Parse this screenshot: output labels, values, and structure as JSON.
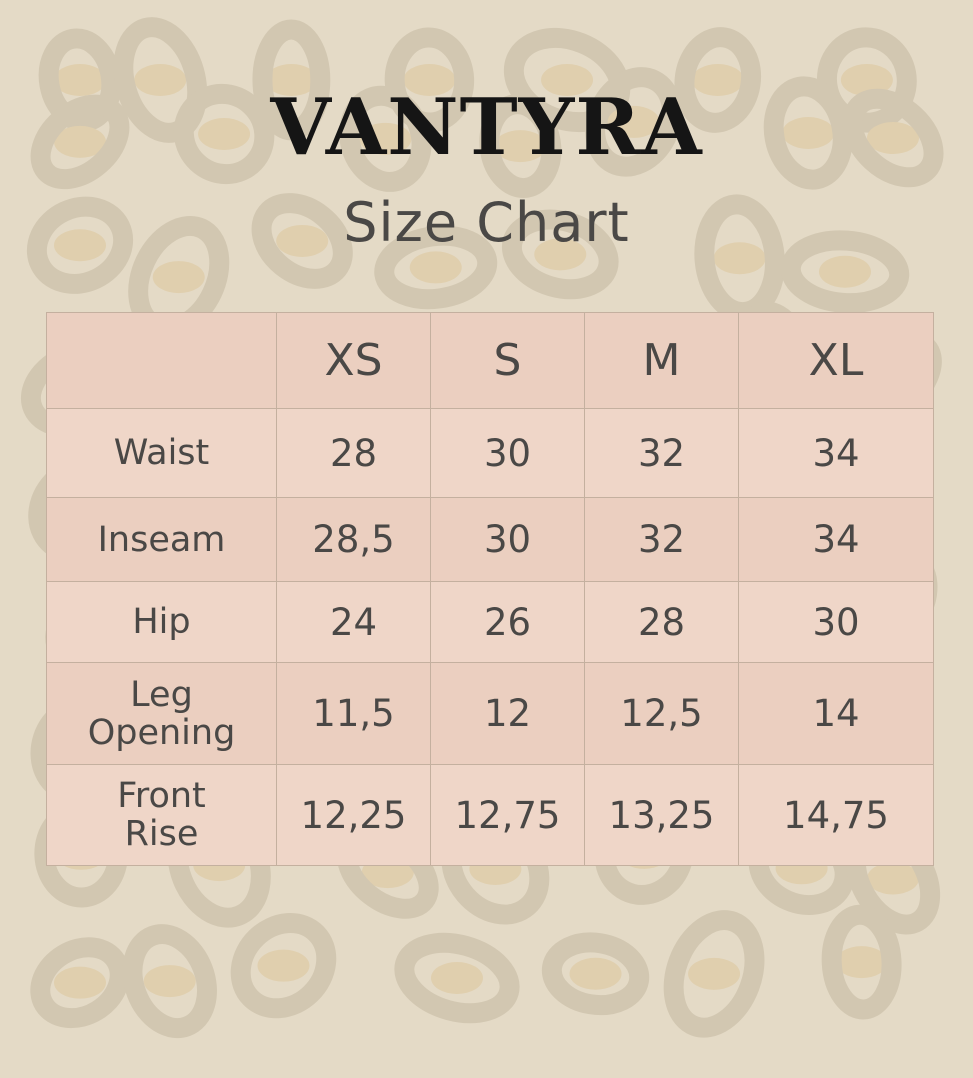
{
  "brand": "VANTYRA",
  "subtitle": "Size Chart",
  "colors": {
    "background": "#e4dac6",
    "leopard_spots": "#d2c7b1",
    "table_fill": "#ebcfc0",
    "text": "#4a4846",
    "title": "#151515"
  },
  "chart_data": {
    "type": "table",
    "columns": [
      "",
      "XS",
      "S",
      "M",
      "XL"
    ],
    "rows": [
      {
        "label": "Waist",
        "values": [
          "28",
          "30",
          "32",
          "34"
        ]
      },
      {
        "label": "Inseam",
        "values": [
          "28,5",
          "30",
          "32",
          "34"
        ]
      },
      {
        "label": "Hip",
        "values": [
          "24",
          "26",
          "28",
          "30"
        ]
      },
      {
        "label": "Leg Opening",
        "values": [
          "11,5",
          "12",
          "12,5",
          "14"
        ]
      },
      {
        "label": "Front Rise",
        "values": [
          "12,25",
          "12,75",
          "13,25",
          "14,75"
        ]
      }
    ]
  }
}
